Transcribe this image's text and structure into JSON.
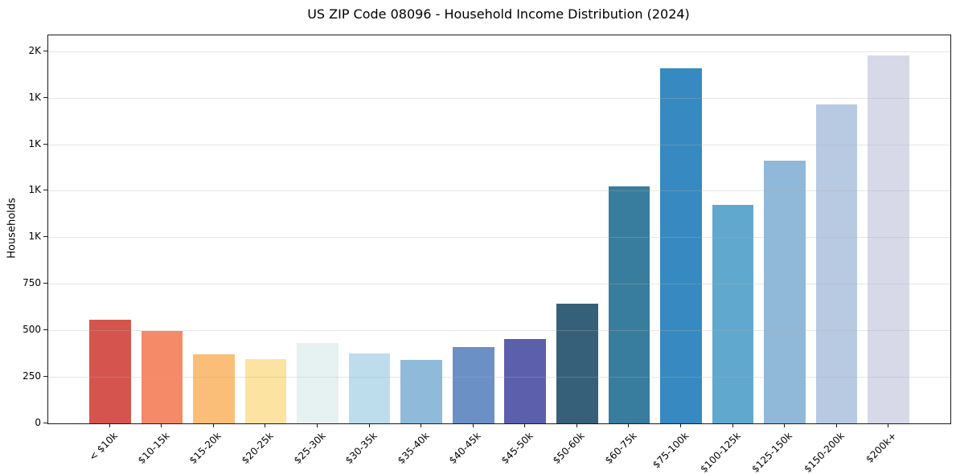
{
  "chart_data": {
    "type": "bar",
    "title": "US ZIP Code 08096 - Household Income Distribution (2024)",
    "xlabel": "",
    "ylabel": "Households",
    "categories": [
      "< $10k",
      "$10-15k",
      "$15-20k",
      "$20-25k",
      "$25-30k",
      "$30-35k",
      "$35-40k",
      "$40-45k",
      "$45-50k",
      "$50-60k",
      "$60-75k",
      "$75-100k",
      "$100-125k",
      "$125-150k",
      "$150-200k",
      "$200k+"
    ],
    "values": [
      555,
      495,
      370,
      347,
      430,
      375,
      340,
      410,
      455,
      642,
      1275,
      1910,
      1175,
      1410,
      1715,
      1975
    ],
    "bar_colors": [
      "#d6544e",
      "#f48a68",
      "#fbbe78",
      "#fde3a1",
      "#e6f1f2",
      "#bddcec",
      "#90bada",
      "#6b90c6",
      "#5c5fab",
      "#36607a",
      "#387d9d",
      "#378ac1",
      "#61a8ce",
      "#90b9d9",
      "#b8c9e2",
      "#d7d8e8"
    ],
    "ylim": [
      0,
      2085
    ],
    "yticks": [
      {
        "value": 0,
        "label": "0"
      },
      {
        "value": 250,
        "label": "250"
      },
      {
        "value": 500,
        "label": "500"
      },
      {
        "value": 750,
        "label": "750"
      },
      {
        "value": 1000,
        "label": "1K"
      },
      {
        "value": 1250,
        "label": "1K"
      },
      {
        "value": 1500,
        "label": "1K"
      },
      {
        "value": 1750,
        "label": "1K"
      },
      {
        "value": 2000,
        "label": "2K"
      }
    ],
    "grid": "horizontal-y",
    "legend": "none",
    "colors": {
      "background": "#ffffff",
      "gridline": "#b0b0b0",
      "spine": "#1a1a1a",
      "text": "#000000"
    }
  }
}
